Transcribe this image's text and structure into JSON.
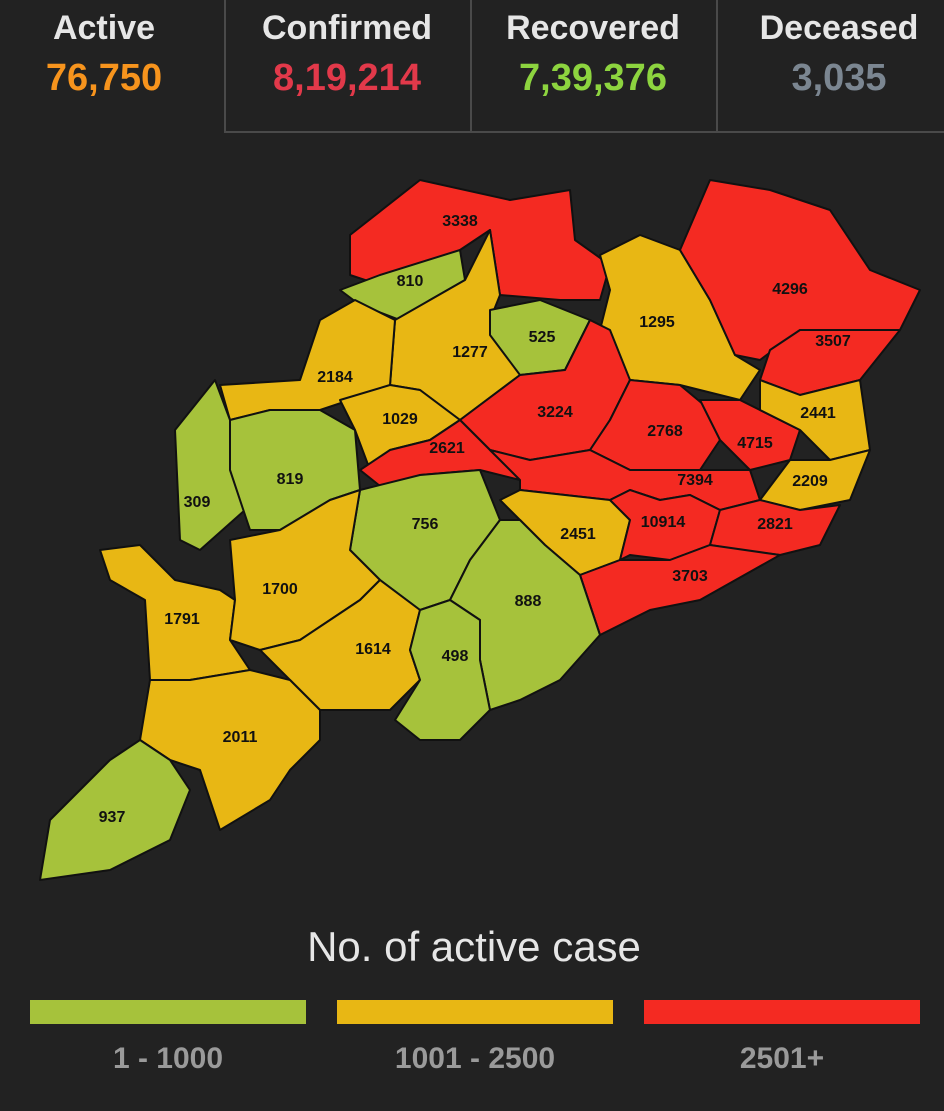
{
  "stats": [
    {
      "label": "Active",
      "value": "76,750",
      "color": "#f7941d"
    },
    {
      "label": "Confirmed",
      "value": "8,19,214",
      "color": "#e2394a"
    },
    {
      "label": "Recovered",
      "value": "7,39,376",
      "color": "#8dd43f"
    },
    {
      "label": "Deceased",
      "value": "3,035",
      "color": "#7b8691"
    }
  ],
  "map": {
    "districts": [
      {
        "value": 3338,
        "color": "#f42a22"
      },
      {
        "value": 810,
        "color": "#a6c23b"
      },
      {
        "value": 1277,
        "color": "#e8b714"
      },
      {
        "value": 525,
        "color": "#a6c23b"
      },
      {
        "value": 1295,
        "color": "#e8b714"
      },
      {
        "value": 4296,
        "color": "#f42a22"
      },
      {
        "value": 3507,
        "color": "#f42a22"
      },
      {
        "value": 2184,
        "color": "#e8b714"
      },
      {
        "value": 1029,
        "color": "#e8b714"
      },
      {
        "value": 3224,
        "color": "#f42a22"
      },
      {
        "value": 2768,
        "color": "#f42a22"
      },
      {
        "value": 4715,
        "color": "#f42a22"
      },
      {
        "value": 2441,
        "color": "#e8b714"
      },
      {
        "value": 2621,
        "color": "#f42a22"
      },
      {
        "value": 309,
        "color": "#a6c23b"
      },
      {
        "value": 819,
        "color": "#a6c23b"
      },
      {
        "value": 756,
        "color": "#a6c23b"
      },
      {
        "value": 7394,
        "color": "#f42a22"
      },
      {
        "value": 2209,
        "color": "#e8b714"
      },
      {
        "value": 2451,
        "color": "#e8b714"
      },
      {
        "value": 10914,
        "color": "#f42a22"
      },
      {
        "value": 2821,
        "color": "#f42a22"
      },
      {
        "value": 3703,
        "color": "#f42a22"
      },
      {
        "value": 888,
        "color": "#a6c23b"
      },
      {
        "value": 1791,
        "color": "#e8b714"
      },
      {
        "value": 1700,
        "color": "#e8b714"
      },
      {
        "value": 1614,
        "color": "#e8b714"
      },
      {
        "value": 498,
        "color": "#a6c23b"
      },
      {
        "value": 2011,
        "color": "#e8b714"
      },
      {
        "value": 937,
        "color": "#a6c23b"
      }
    ]
  },
  "legend": {
    "title": "No. of active case",
    "items": [
      {
        "label": "1 - 1000",
        "color": "#a6c23b"
      },
      {
        "label": "1001 - 2500",
        "color": "#e8b714"
      },
      {
        "label": "2501+",
        "color": "#f42a22"
      }
    ]
  }
}
